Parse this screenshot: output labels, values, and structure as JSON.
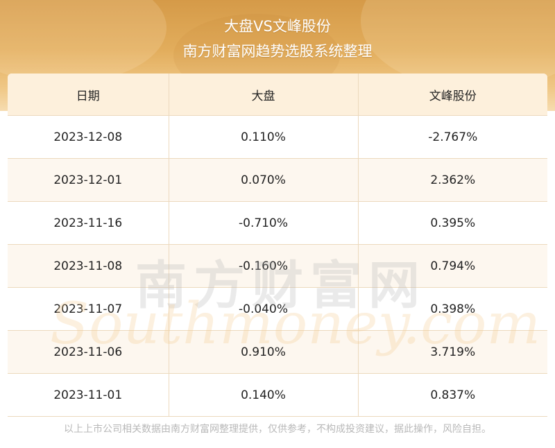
{
  "header": {
    "title": "大盘VS文峰股份",
    "subtitle": "南方财富网趋势选股系统整理"
  },
  "table": {
    "columns": [
      "日期",
      "大盘",
      "文峰股份"
    ],
    "rows": [
      [
        "2023-12-08",
        "0.110%",
        "-2.767%"
      ],
      [
        "2023-12-01",
        "0.070%",
        "2.362%"
      ],
      [
        "2023-11-16",
        "-0.710%",
        "0.395%"
      ],
      [
        "2023-11-08",
        "-0.160%",
        "0.794%"
      ],
      [
        "2023-11-07",
        "-0.040%",
        "0.398%"
      ],
      [
        "2023-11-06",
        "0.910%",
        "3.719%"
      ],
      [
        "2023-11-01",
        "0.140%",
        "0.837%"
      ]
    ]
  },
  "watermark": {
    "cn": "南方财富网",
    "en": "Southmoney.com"
  },
  "footer": {
    "disclaimer": "以上上市公司相关数据由南方财富网整理提供，仅供参考，不构成投资建议，据此操作，风险自担。"
  }
}
